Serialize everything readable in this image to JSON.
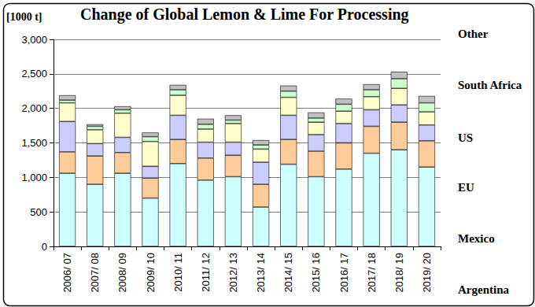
{
  "chart_data": {
    "type": "bar",
    "title": "Change of Global Lemon & Lime For Processing",
    "ylabel": "[1000 t]",
    "categories": [
      "2006/ 07",
      "2007/ 08",
      "2008/ 09",
      "2009/ 10",
      "2010/ 11",
      "2011/ 12",
      "2012/ 13",
      "2013/ 14",
      "2014/ 15",
      "2015/ 16",
      "2016/ 17",
      "2017/ 18",
      "2018/ 19",
      "2019/ 20"
    ],
    "series": [
      {
        "name": "Argentina",
        "color": "#ccffff",
        "values": [
          1060,
          900,
          1060,
          700,
          1200,
          960,
          1010,
          570,
          1190,
          1010,
          1120,
          1350,
          1400,
          1150
        ]
      },
      {
        "name": "Mexico",
        "color": "#ffcc99",
        "values": [
          310,
          410,
          300,
          290,
          350,
          320,
          310,
          330,
          360,
          370,
          380,
          390,
          400,
          380
        ]
      },
      {
        "name": "EU",
        "color": "#ccccff",
        "values": [
          440,
          180,
          220,
          170,
          350,
          230,
          190,
          320,
          350,
          240,
          280,
          240,
          250,
          230
        ]
      },
      {
        "name": "US",
        "color": "#ffffcc",
        "values": [
          270,
          200,
          350,
          360,
          290,
          190,
          270,
          190,
          260,
          180,
          180,
          190,
          240,
          190
        ]
      },
      {
        "name": "South Africa",
        "color": "#ccffcc",
        "values": [
          40,
          50,
          50,
          70,
          80,
          70,
          50,
          60,
          90,
          60,
          100,
          100,
          140,
          130
        ]
      },
      {
        "name": "Other",
        "color": "#c0c0c0",
        "values": [
          70,
          30,
          50,
          60,
          70,
          80,
          70,
          70,
          80,
          80,
          80,
          80,
          100,
          100
        ]
      }
    ],
    "stacked": true,
    "ylim": [
      0,
      3000
    ],
    "yticks": [
      0,
      500,
      {
        "value": 1000,
        "label": "1,000"
      },
      {
        "value": 1500,
        "label": "1,500"
      },
      {
        "value": 2000,
        "label": "2,000"
      },
      {
        "value": 2500,
        "label": "2,500"
      },
      {
        "value": 3000,
        "label": "3,000"
      }
    ],
    "grid": true
  }
}
